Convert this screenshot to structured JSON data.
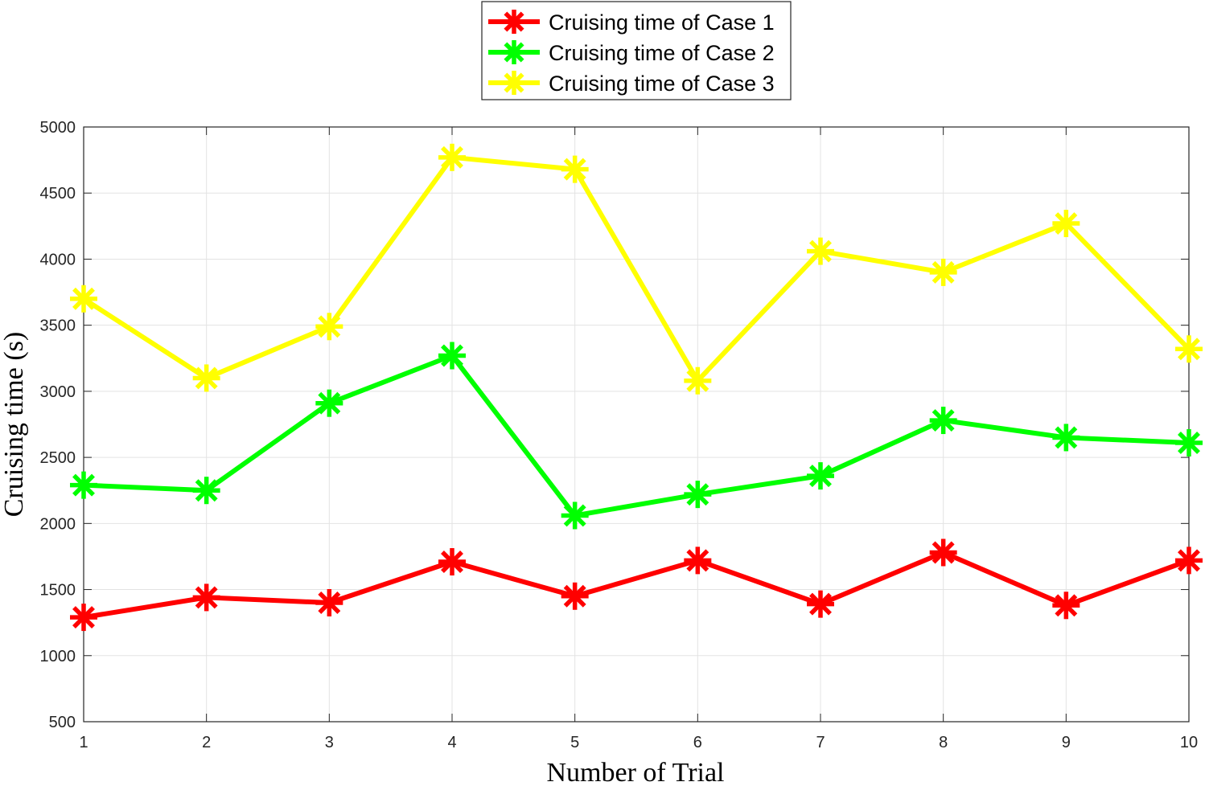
{
  "chart_data": {
    "type": "line",
    "title": "",
    "xlabel": "Number of Trial",
    "ylabel": "Cruising time (s)",
    "x": [
      1,
      2,
      3,
      4,
      5,
      6,
      7,
      8,
      9,
      10
    ],
    "xlim": [
      1,
      10
    ],
    "ylim": [
      500,
      5000
    ],
    "xticks": [
      "1",
      "2",
      "3",
      "4",
      "5",
      "6",
      "7",
      "8",
      "9",
      "10"
    ],
    "yticks": [
      "500",
      "1000",
      "1500",
      "2000",
      "2500",
      "3000",
      "3500",
      "4000",
      "4500",
      "5000"
    ],
    "grid": true,
    "legend_position": "top-center",
    "series": [
      {
        "name": "Cruising time of Case 1",
        "color": "#ff0000",
        "marker": "asterisk",
        "values": [
          1290,
          1440,
          1400,
          1710,
          1450,
          1720,
          1390,
          1780,
          1380,
          1720
        ]
      },
      {
        "name": "Cruising time of Case 2",
        "color": "#00ff00",
        "marker": "asterisk",
        "values": [
          2290,
          2250,
          2910,
          3270,
          2060,
          2220,
          2360,
          2780,
          2650,
          2610
        ]
      },
      {
        "name": "Cruising time of Case 3",
        "color": "#ffff00",
        "marker": "asterisk",
        "values": [
          3700,
          3100,
          3490,
          4770,
          4680,
          3080,
          4060,
          3900,
          4270,
          3320
        ]
      }
    ]
  }
}
